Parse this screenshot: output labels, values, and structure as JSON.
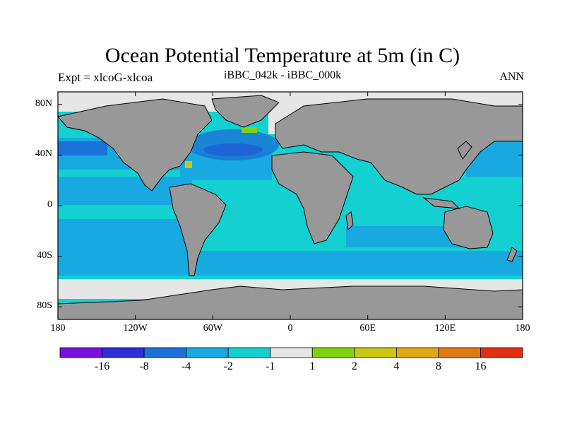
{
  "title": "Ocean Potential Temperature at 5m (in C)",
  "subtitle_left": "Expt = xlcoG-xlcoa",
  "subtitle_center": "iBBC_042k - iBBC_000k",
  "subtitle_right": "ANN",
  "lat_axis": [
    {
      "label": "80N",
      "value": 80
    },
    {
      "label": "40N",
      "value": 40
    },
    {
      "label": "0",
      "value": 0
    },
    {
      "label": "40S",
      "value": -40
    },
    {
      "label": "80S",
      "value": -80
    }
  ],
  "lon_axis": [
    {
      "label": "180",
      "value": -180
    },
    {
      "label": "120W",
      "value": -120
    },
    {
      "label": "60W",
      "value": -60
    },
    {
      "label": "0",
      "value": 0
    },
    {
      "label": "60E",
      "value": 60
    },
    {
      "label": "120E",
      "value": 120
    },
    {
      "label": "180",
      "value": 180
    }
  ],
  "colorbar": {
    "colors": [
      "#7a10e0",
      "#2e2ed8",
      "#1c72d6",
      "#17a9e0",
      "#14d0d0",
      "#e6e6e6",
      "#7ed412",
      "#c8c814",
      "#e0a814",
      "#e07a14",
      "#e03010"
    ],
    "labels": [
      "-16",
      "-8",
      "-4",
      "-2",
      "-1",
      "1",
      "2",
      "4",
      "8",
      "16"
    ]
  },
  "colors": {
    "land": "#989898",
    "ice": "#e6e6e6"
  }
}
